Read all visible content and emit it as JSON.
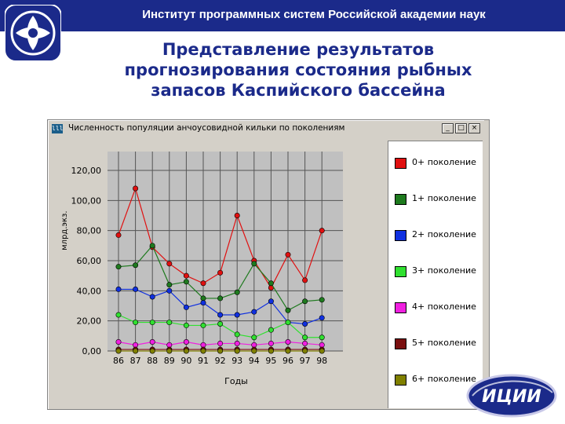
{
  "header": {
    "title": "Институт программных систем Российской академии наук"
  },
  "slide": {
    "title": "Представление результатов\nпрогнозирования состояния рыбных\nзапасов Каспийского бассейна"
  },
  "window": {
    "title": "Численность популяции анчоусовидной кильки по поколениям",
    "icon_text": "lll",
    "minimize_glyph": "_",
    "maximize_glyph": "□",
    "close_glyph": "×"
  },
  "logo_right": {
    "text": "ИЦИИ"
  },
  "colors": {
    "header_bg": "#1b2a8a",
    "title_text": "#1b2a8a",
    "window_bg": "#d4d0c8",
    "plot_bg": "#c0c0c0"
  },
  "chart_data": {
    "type": "line",
    "title": "",
    "xlabel": "Годы",
    "ylabel": "млрд.экз.",
    "x": [
      "86",
      "87",
      "88",
      "89",
      "90",
      "91",
      "92",
      "93",
      "94",
      "95",
      "96",
      "97",
      "98"
    ],
    "ylim": [
      0,
      120
    ],
    "yticks": [
      "0,00",
      "20,00",
      "40,00",
      "60,00",
      "80,00",
      "100,00",
      "120,00"
    ],
    "ytick_values": [
      0,
      20,
      40,
      60,
      80,
      100,
      120
    ],
    "grid": true,
    "legend_position": "right",
    "series": [
      {
        "name": "0+ поколение",
        "color": "#e01010",
        "values": [
          77,
          108,
          69,
          58,
          50,
          45,
          52,
          90,
          60,
          42,
          64,
          47,
          80
        ]
      },
      {
        "name": "1+ поколение",
        "color": "#1e7a1e",
        "values": [
          56,
          57,
          70,
          44,
          46,
          35,
          35,
          39,
          58,
          45,
          27,
          33,
          34
        ]
      },
      {
        "name": "2+ поколение",
        "color": "#1030e0",
        "values": [
          41,
          41,
          36,
          40,
          29,
          32,
          24,
          24,
          26,
          33,
          19,
          18,
          22
        ]
      },
      {
        "name": "3+ поколение",
        "color": "#30e030",
        "values": [
          24,
          19,
          19,
          19,
          17,
          17,
          18,
          11,
          9,
          14,
          19,
          9,
          9
        ]
      },
      {
        "name": "4+ поколение",
        "color": "#f020e0",
        "values": [
          6,
          4,
          6,
          4,
          6,
          4,
          5,
          5,
          4,
          5,
          6,
          5,
          4
        ]
      },
      {
        "name": "5+ поколение",
        "color": "#7a1010",
        "values": [
          1,
          1,
          1,
          1,
          1,
          1,
          1,
          1,
          1,
          1,
          1,
          1,
          1
        ]
      },
      {
        "name": "6+ поколение",
        "color": "#808000",
        "values": [
          0,
          0,
          0,
          0,
          0,
          0,
          0,
          0,
          0,
          0,
          0,
          0,
          0
        ]
      }
    ]
  }
}
